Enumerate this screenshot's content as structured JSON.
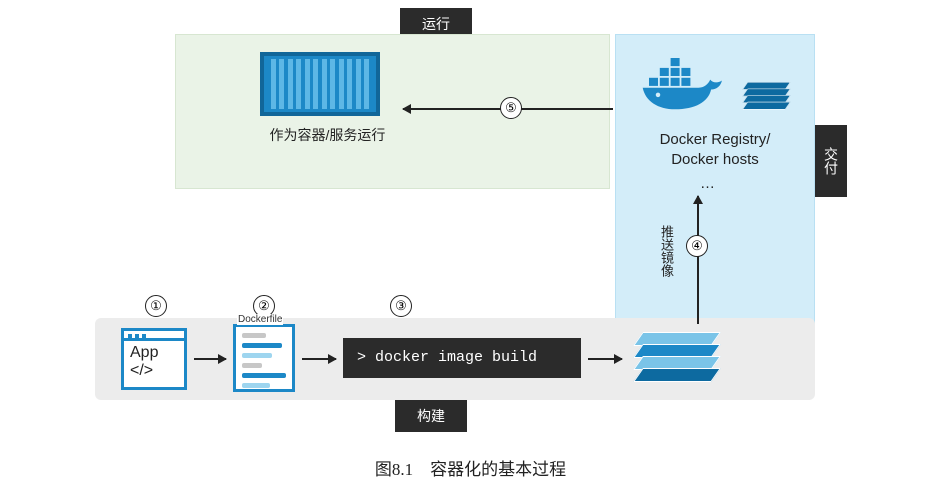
{
  "diagram": {
    "type": "flowchart",
    "colors": {
      "docker_blue": "#1c88c7",
      "docker_blue_dark": "#0d6aa0",
      "docker_blue_light": "#7ac4e8",
      "panel_green_bg": "#eaf3e7",
      "panel_green_border": "#d7e6d1",
      "panel_blue_bg": "#d3edf9",
      "panel_blue_border": "#b9e0f3",
      "panel_grey": "#ececec",
      "tag_bg": "#2b2b2b",
      "text": "#222222",
      "white": "#ffffff"
    },
    "tags": {
      "run": "运行",
      "build": "构建",
      "deliver": "交付"
    },
    "steps": {
      "s1": "①",
      "s2": "②",
      "s3": "③",
      "s4": "④",
      "s5": "⑤"
    },
    "run_panel": {
      "container_label": "作为容器/服务运行"
    },
    "registry_panel": {
      "label_line1": "Docker Registry/",
      "label_line2": "Docker hosts",
      "dots": "…"
    },
    "push_label": "推送镜像",
    "app_box": {
      "line1": "App",
      "line2": "</>"
    },
    "dockerfile": {
      "title": "Dockerfile",
      "line_colors": [
        "#c7c7c7",
        "#1c88c7",
        "#9ed5ef",
        "#c7c7c7",
        "#1c88c7",
        "#9ed5ef"
      ],
      "line_widths": [
        24,
        40,
        30,
        20,
        44,
        28
      ]
    },
    "command": "> docker image build",
    "caption": "图8.1　容器化的基本过程"
  }
}
